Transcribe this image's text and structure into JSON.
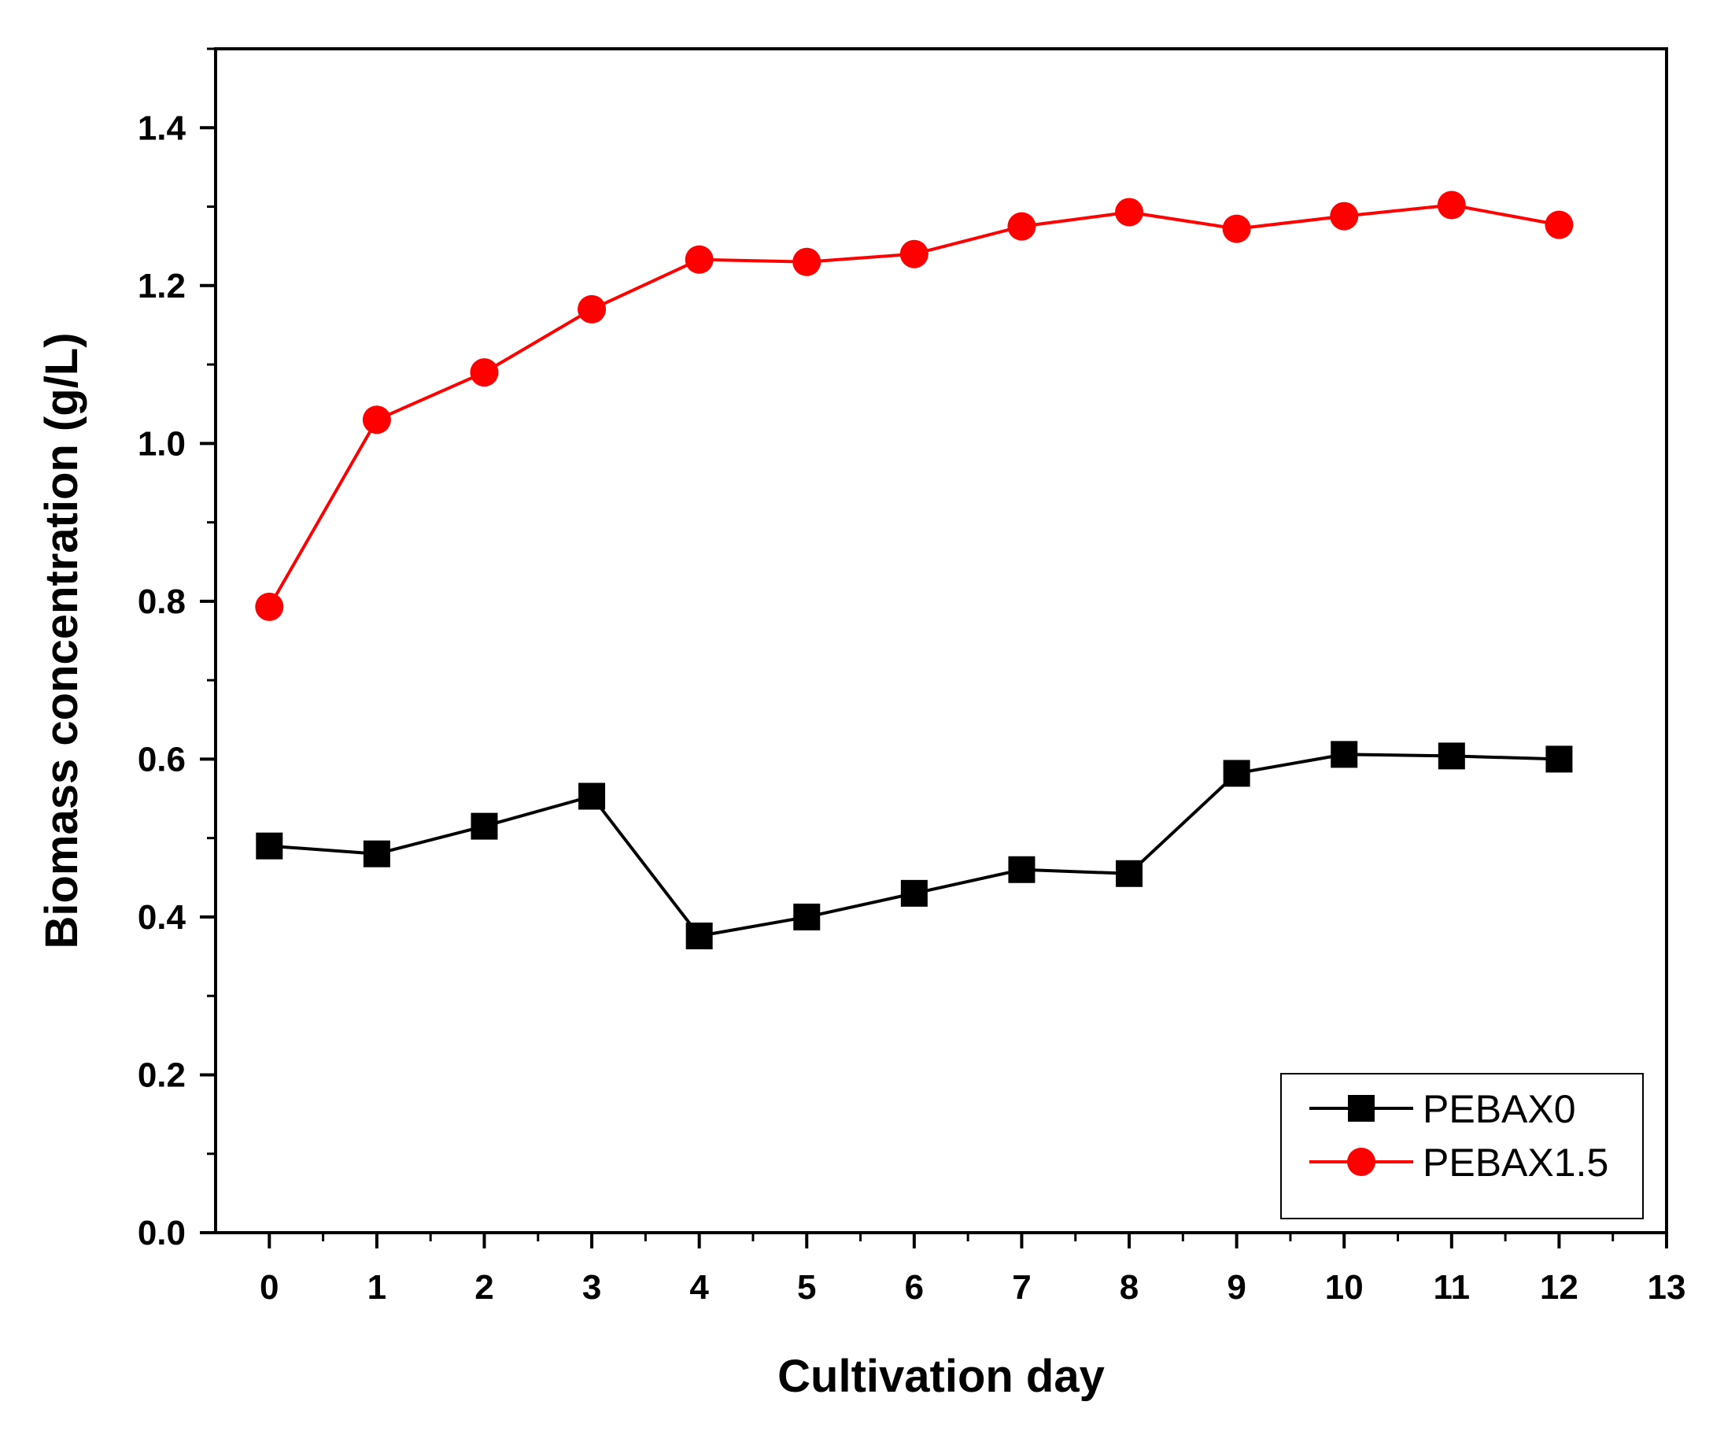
{
  "chart_data": {
    "type": "line",
    "title": "",
    "xlabel": "Cultivation day",
    "ylabel": "Biomass concentration (g/L)",
    "xlim": [
      -0.5,
      13
    ],
    "ylim": [
      0,
      1.5
    ],
    "x_ticks": [
      0,
      1,
      2,
      3,
      4,
      5,
      6,
      7,
      8,
      9,
      10,
      11,
      12,
      13
    ],
    "x_tick_labels": [
      "0",
      "1",
      "2",
      "3",
      "4",
      "5",
      "6",
      "7",
      "8",
      "9",
      "10",
      "11",
      "12",
      "13"
    ],
    "y_ticks": [
      0,
      0.2,
      0.4,
      0.6,
      0.8,
      1.0,
      1.2,
      1.4
    ],
    "y_tick_labels": [
      "0.0",
      "0.2",
      "0.4",
      "0.6",
      "0.8",
      "1.0",
      "1.2",
      "1.4"
    ],
    "grid": false,
    "legend_position": "bottom-right",
    "x": [
      0,
      1,
      2,
      3,
      4,
      5,
      6,
      7,
      8,
      9,
      10,
      11,
      12
    ],
    "series": [
      {
        "name": "PEBAX0",
        "color": "#000000",
        "marker": "square",
        "values": [
          0.49,
          0.48,
          0.515,
          0.553,
          0.376,
          0.4,
          0.43,
          0.46,
          0.455,
          0.582,
          0.606,
          0.604,
          0.6
        ]
      },
      {
        "name": "PEBAX1.5",
        "color": "#ff0000",
        "marker": "circle",
        "values": [
          0.793,
          1.03,
          1.09,
          1.17,
          1.233,
          1.23,
          1.24,
          1.275,
          1.293,
          1.272,
          1.288,
          1.302,
          1.277
        ]
      }
    ]
  }
}
